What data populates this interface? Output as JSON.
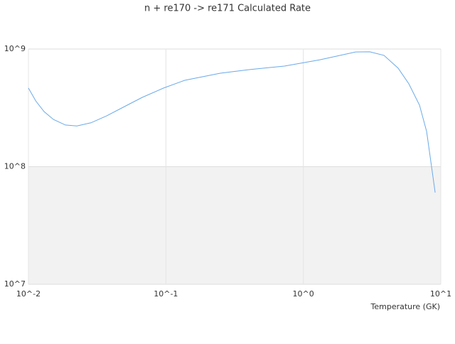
{
  "chart_data": {
    "type": "line",
    "title": "n + re170 -> re171 Calculated Rate",
    "x_label": "Temperature (GK)",
    "log_x": true,
    "log_y": true,
    "grid": true,
    "grid_bands": true,
    "xlim": [
      0.01,
      10
    ],
    "ylim": [
      10000000,
      1000000000
    ],
    "xticks": [
      {
        "value": 0.01,
        "label": "10^-2"
      },
      {
        "value": 0.1,
        "label": "10^-1"
      },
      {
        "value": 1,
        "label": "10^0"
      },
      {
        "value": 10,
        "label": "10^1"
      }
    ],
    "yticks": [
      {
        "value": 10000000,
        "label": "10^7"
      },
      {
        "value": 100000000,
        "label": "10^8"
      },
      {
        "value": 1000000000,
        "label": "10^9"
      }
    ],
    "x": [
      0.01,
      0.0113,
      0.013,
      0.0152,
      0.0186,
      0.0225,
      0.0285,
      0.037,
      0.0499,
      0.0673,
      0.0962,
      0.137,
      0.249,
      0.402,
      0.728,
      1.32,
      2.4,
      3.04,
      3.86,
      4.9,
      5.86,
      7.0,
      7.89,
      9.1
    ],
    "series": [
      {
        "color": "#6aa9e9",
        "values": [
          466000000,
          362000000,
          294000000,
          252000000,
          226000000,
          222000000,
          236000000,
          270000000,
          324000000,
          388000000,
          466000000,
          542000000,
          623000000,
          668000000,
          716000000,
          811000000,
          945000000,
          947000000,
          883000000,
          687000000,
          506000000,
          333000000,
          199000000,
          60300000
        ]
      }
    ]
  }
}
